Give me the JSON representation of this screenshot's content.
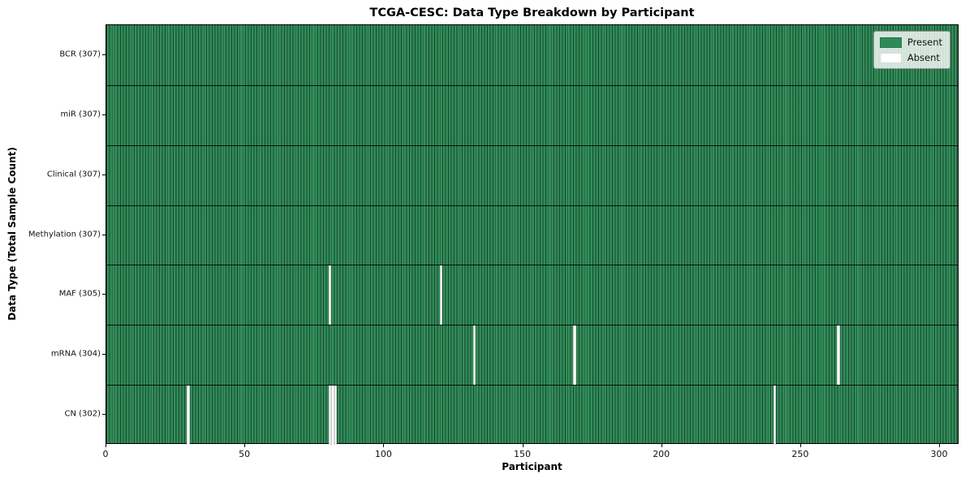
{
  "chart_data": {
    "type": "heatmap",
    "title": "TCGA-CESC: Data Type Breakdown by Participant",
    "xlabel": "Participant",
    "ylabel": "Data Type (Total Sample Count)",
    "x_ticks": [
      0,
      50,
      100,
      150,
      200,
      250,
      300
    ],
    "xlim": [
      0,
      307
    ],
    "n_participants": 307,
    "grid": false,
    "rows": [
      {
        "data_type": "BCR",
        "label": "BCR (307)",
        "total": 307,
        "absent_participants": []
      },
      {
        "data_type": "miR",
        "label": "miR (307)",
        "total": 307,
        "absent_participants": []
      },
      {
        "data_type": "Clinical",
        "label": "Clinical (307)",
        "total": 307,
        "absent_participants": []
      },
      {
        "data_type": "Methylation",
        "label": "Methylation (307)",
        "total": 307,
        "absent_participants": []
      },
      {
        "data_type": "MAF",
        "label": "MAF (305)",
        "total": 305,
        "absent_participants": [
          80,
          120
        ]
      },
      {
        "data_type": "mRNA",
        "label": "mRNA (304)",
        "total": 304,
        "absent_participants": [
          132,
          168,
          263
        ]
      },
      {
        "data_type": "CN",
        "label": "CN (302)",
        "total": 302,
        "absent_participants": [
          29,
          80,
          81,
          82,
          240
        ]
      }
    ],
    "legend": {
      "position": "upper right",
      "entries": [
        {
          "label": "Present",
          "color": "#2e8b57"
        },
        {
          "label": "Absent",
          "color": "#ffffff"
        }
      ]
    },
    "colors": {
      "present": "#2e8b57",
      "absent": "#ffffff",
      "cell_border": "rgba(0,0,0,0.5)",
      "row_separator": "rgba(0,0,0,0.85)"
    }
  }
}
